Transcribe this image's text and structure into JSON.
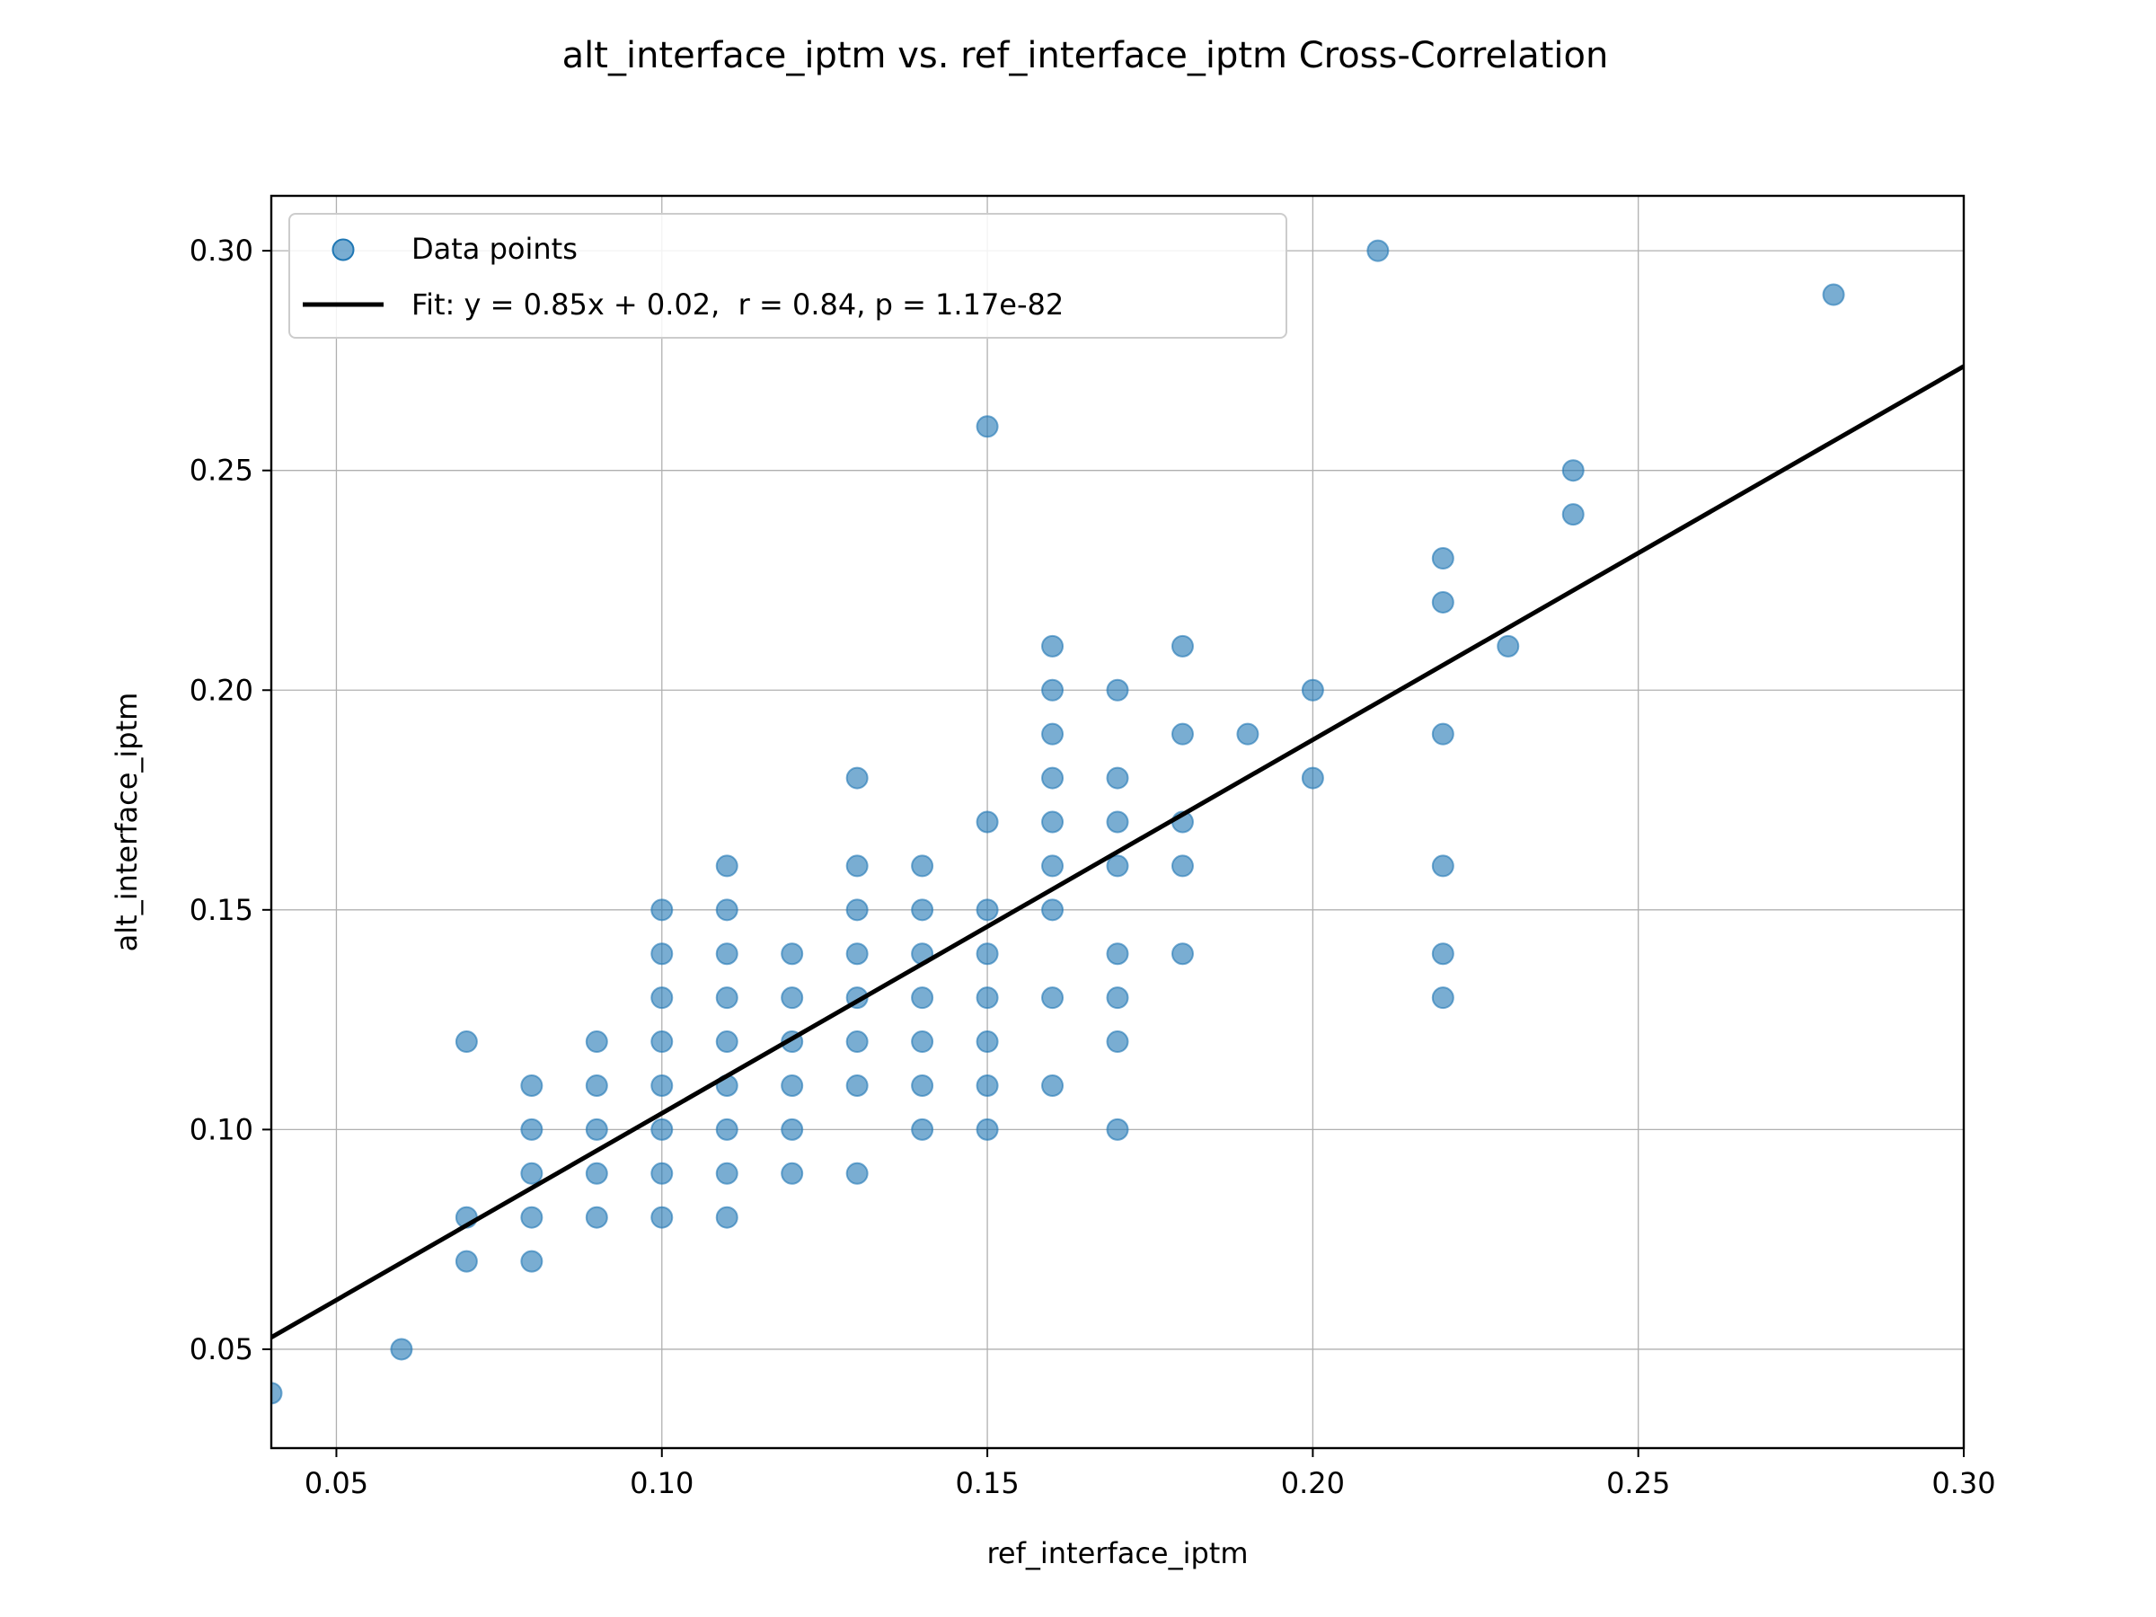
{
  "chart_data": {
    "type": "scatter",
    "title": "alt_interface_iptm vs. ref_interface_iptm Cross-Correlation",
    "xlabel": "ref_interface_iptm",
    "ylabel": "alt_interface_iptm",
    "xlim": [
      0.04,
      0.3
    ],
    "ylim": [
      0.0275,
      0.3125
    ],
    "xticks": [
      "0.05",
      "0.10",
      "0.15",
      "0.20",
      "0.25",
      "0.30"
    ],
    "yticks": [
      "0.05",
      "0.10",
      "0.15",
      "0.20",
      "0.25",
      "0.30"
    ],
    "grid": true,
    "legend_position": "top-left",
    "colors": {
      "points": "#1f77b4",
      "fit": "#000000",
      "grid": "#b0b0b0"
    },
    "series": [
      {
        "name": "Data points",
        "kind": "scatter",
        "points": [
          [
            0.04,
            0.04
          ],
          [
            0.06,
            0.05
          ],
          [
            0.07,
            0.12
          ],
          [
            0.07,
            0.08
          ],
          [
            0.07,
            0.07
          ],
          [
            0.08,
            0.11
          ],
          [
            0.08,
            0.1
          ],
          [
            0.08,
            0.09
          ],
          [
            0.08,
            0.08
          ],
          [
            0.08,
            0.07
          ],
          [
            0.09,
            0.12
          ],
          [
            0.09,
            0.11
          ],
          [
            0.09,
            0.1
          ],
          [
            0.09,
            0.09
          ],
          [
            0.09,
            0.08
          ],
          [
            0.1,
            0.15
          ],
          [
            0.1,
            0.14
          ],
          [
            0.1,
            0.13
          ],
          [
            0.1,
            0.12
          ],
          [
            0.1,
            0.11
          ],
          [
            0.1,
            0.1
          ],
          [
            0.1,
            0.09
          ],
          [
            0.1,
            0.08
          ],
          [
            0.11,
            0.16
          ],
          [
            0.11,
            0.15
          ],
          [
            0.11,
            0.14
          ],
          [
            0.11,
            0.13
          ],
          [
            0.11,
            0.12
          ],
          [
            0.11,
            0.11
          ],
          [
            0.11,
            0.1
          ],
          [
            0.11,
            0.09
          ],
          [
            0.11,
            0.08
          ],
          [
            0.12,
            0.14
          ],
          [
            0.12,
            0.13
          ],
          [
            0.12,
            0.12
          ],
          [
            0.12,
            0.11
          ],
          [
            0.12,
            0.1
          ],
          [
            0.12,
            0.09
          ],
          [
            0.13,
            0.18
          ],
          [
            0.13,
            0.16
          ],
          [
            0.13,
            0.15
          ],
          [
            0.13,
            0.14
          ],
          [
            0.13,
            0.13
          ],
          [
            0.13,
            0.12
          ],
          [
            0.13,
            0.11
          ],
          [
            0.13,
            0.09
          ],
          [
            0.14,
            0.16
          ],
          [
            0.14,
            0.15
          ],
          [
            0.14,
            0.14
          ],
          [
            0.14,
            0.13
          ],
          [
            0.14,
            0.12
          ],
          [
            0.14,
            0.11
          ],
          [
            0.14,
            0.1
          ],
          [
            0.15,
            0.26
          ],
          [
            0.15,
            0.17
          ],
          [
            0.15,
            0.15
          ],
          [
            0.15,
            0.14
          ],
          [
            0.15,
            0.13
          ],
          [
            0.15,
            0.12
          ],
          [
            0.15,
            0.11
          ],
          [
            0.15,
            0.1
          ],
          [
            0.16,
            0.21
          ],
          [
            0.16,
            0.2
          ],
          [
            0.16,
            0.19
          ],
          [
            0.16,
            0.18
          ],
          [
            0.16,
            0.17
          ],
          [
            0.16,
            0.16
          ],
          [
            0.16,
            0.15
          ],
          [
            0.16,
            0.13
          ],
          [
            0.16,
            0.11
          ],
          [
            0.17,
            0.2
          ],
          [
            0.17,
            0.18
          ],
          [
            0.17,
            0.17
          ],
          [
            0.17,
            0.16
          ],
          [
            0.17,
            0.14
          ],
          [
            0.17,
            0.13
          ],
          [
            0.17,
            0.12
          ],
          [
            0.17,
            0.1
          ],
          [
            0.18,
            0.21
          ],
          [
            0.18,
            0.19
          ],
          [
            0.18,
            0.17
          ],
          [
            0.18,
            0.16
          ],
          [
            0.18,
            0.14
          ],
          [
            0.19,
            0.19
          ],
          [
            0.2,
            0.2
          ],
          [
            0.2,
            0.18
          ],
          [
            0.21,
            0.3
          ],
          [
            0.22,
            0.23
          ],
          [
            0.22,
            0.22
          ],
          [
            0.22,
            0.19
          ],
          [
            0.22,
            0.16
          ],
          [
            0.22,
            0.14
          ],
          [
            0.22,
            0.13
          ],
          [
            0.23,
            0.21
          ],
          [
            0.24,
            0.25
          ],
          [
            0.24,
            0.24
          ],
          [
            0.28,
            0.29
          ]
        ]
      },
      {
        "name": "Fit: y = 0.85x + 0.02,  r = 0.84, p = 1.17e-82",
        "kind": "line",
        "slope": 0.85,
        "intercept": 0.0187
      }
    ]
  }
}
